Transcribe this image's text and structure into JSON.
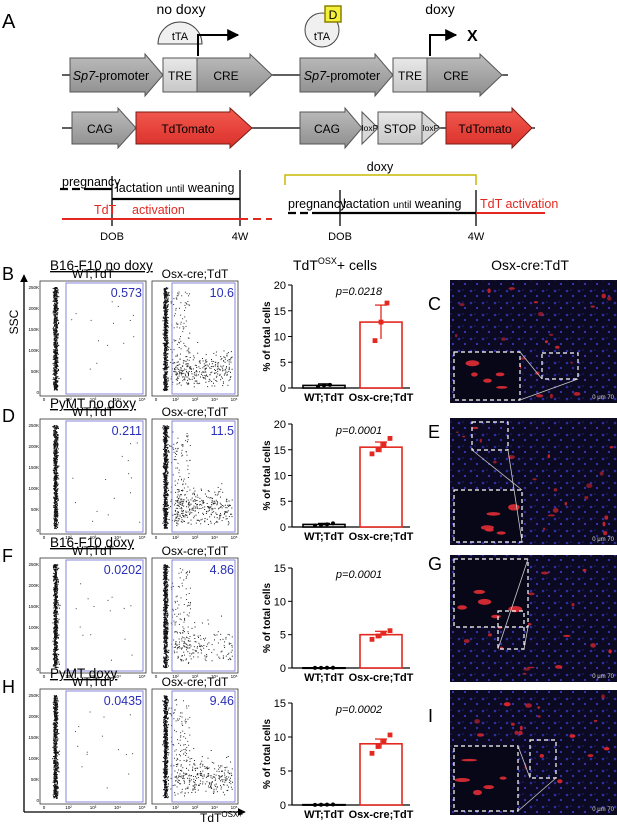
{
  "panel_letters": [
    "A",
    "B",
    "C",
    "D",
    "E",
    "F",
    "G",
    "H",
    "I"
  ],
  "schematic": {
    "no_doxy": {
      "title": "no doxy",
      "tta": "tTA",
      "promoter": "Sp7-promoter",
      "promoter_italic": "Sp7",
      "promoter_rest": "-promoter",
      "tre": "TRE",
      "cre": "CRE",
      "cag": "CAG",
      "tdtomato": "TdTomato"
    },
    "doxy": {
      "title": "doxy",
      "d_badge": "D",
      "tta": "tTA",
      "blocked": "X",
      "promoter_italic": "Sp7",
      "promoter_rest": "-promoter",
      "tre": "TRE",
      "cre": "CRE",
      "cag": "CAG",
      "loxp": "loxP",
      "stop": "STOP",
      "tdtomato": "TdTomato"
    }
  },
  "timeline": {
    "left": {
      "pregnancy": "pregnancy",
      "lactation": "lactation",
      "until": "until",
      "weaning": "weaning",
      "tdt": "TdT",
      "activation": "activation",
      "dob": "DOB",
      "w4": "4W"
    },
    "right": {
      "doxy": "doxy",
      "pregnancy": "pregnancy",
      "lactation": "lactation",
      "until": "until",
      "weaning": "weaning",
      "tdt_activation": "TdT activation",
      "dob": "DOB",
      "w4": "4W"
    }
  },
  "flow": {
    "y_axis": "SSC",
    "x_axis_main": "TdT",
    "x_axis_sup": "OSX+",
    "y_ticks": [
      "250K",
      "200K",
      "150K",
      "100K",
      "50K",
      "0"
    ],
    "x_ticks": [
      "0",
      "10²",
      "10³",
      "10⁴",
      "10⁵"
    ],
    "rows": [
      {
        "title": "B16-F10 no doxy",
        "wt_label": "WT;TdT",
        "cre_label": "Osx-cre;TdT",
        "wt_value": "0.573",
        "cre_value": "10.6"
      },
      {
        "title": "PyMT no doxy",
        "wt_label": "WT;TdT",
        "cre_label": "Osx-cre;TdT",
        "wt_value": "0.211",
        "cre_value": "11.5"
      },
      {
        "title": "B16-F10 doxy",
        "wt_label": "WT;TdT",
        "cre_label": "Osx-cre;TdT",
        "wt_value": "0.0202",
        "cre_value": "4.86"
      },
      {
        "title": "PyMT doxy",
        "wt_label": "WT;TdT",
        "cre_label": "Osx-cre;TdT",
        "wt_value": "0.0435",
        "cre_value": "9.46"
      }
    ]
  },
  "bar_header": {
    "main": "TdT",
    "sup": "OSX",
    "rest": "+ cells"
  },
  "chart_data": [
    {
      "type": "bar",
      "ylabel": "% of total cells",
      "ylim": [
        0,
        20
      ],
      "yticks": [
        0,
        5,
        10,
        15,
        20
      ],
      "categories": [
        "WT;TdT",
        "Osx-cre;TdT"
      ],
      "values": [
        0.5,
        12.8
      ],
      "errors": [
        0.3,
        3.3
      ],
      "points": [
        [
          0.3,
          0.5,
          0.6
        ],
        [
          9.2,
          12.8,
          16.5
        ]
      ],
      "annotation": "p=0.0218"
    },
    {
      "type": "bar",
      "ylabel": "% of total cells",
      "ylim": [
        0,
        20
      ],
      "yticks": [
        0,
        5,
        10,
        15,
        20
      ],
      "categories": [
        "WT;TdT",
        "Osx-cre;TdT"
      ],
      "values": [
        0.5,
        15.5
      ],
      "errors": [
        0.2,
        1.0
      ],
      "points": [
        [
          0.3,
          0.4,
          0.5,
          0.7
        ],
        [
          14.2,
          15.0,
          16.0,
          17.2
        ]
      ],
      "annotation": "p=0.0001"
    },
    {
      "type": "bar",
      "ylabel": "% of total cells",
      "ylim": [
        0,
        15
      ],
      "yticks": [
        0,
        5,
        10,
        15
      ],
      "categories": [
        "WT;TdT",
        "Osx-cre;TdT"
      ],
      "values": [
        0.03,
        5.0
      ],
      "errors": [
        0.02,
        0.5
      ],
      "points": [
        [
          0.01,
          0.02,
          0.03,
          0.04
        ],
        [
          4.3,
          4.8,
          5.2,
          5.6
        ]
      ],
      "annotation": "p=0.0001"
    },
    {
      "type": "bar",
      "ylabel": "% of total cells",
      "ylim": [
        0,
        15
      ],
      "yticks": [
        0,
        5,
        10,
        15
      ],
      "categories": [
        "WT;TdT",
        "Osx-cre;TdT"
      ],
      "values": [
        0.05,
        9.0
      ],
      "errors": [
        0.04,
        0.7
      ],
      "points": [
        [
          0.02,
          0.04,
          0.05,
          0.07
        ],
        [
          7.6,
          8.6,
          9.3,
          10.3
        ]
      ],
      "annotation": "p=0.0002"
    }
  ],
  "micro": {
    "header": "Osx-cre:TdT",
    "scale": "0 μm 70"
  },
  "colors": {
    "red": "#e3281f",
    "blue": "#2a2fb6",
    "gray": "#a8a8a8",
    "darkgray": "#8a8a8a",
    "doxy_bracket": "#c9b800",
    "d_yellow": "#f4ef3a"
  }
}
